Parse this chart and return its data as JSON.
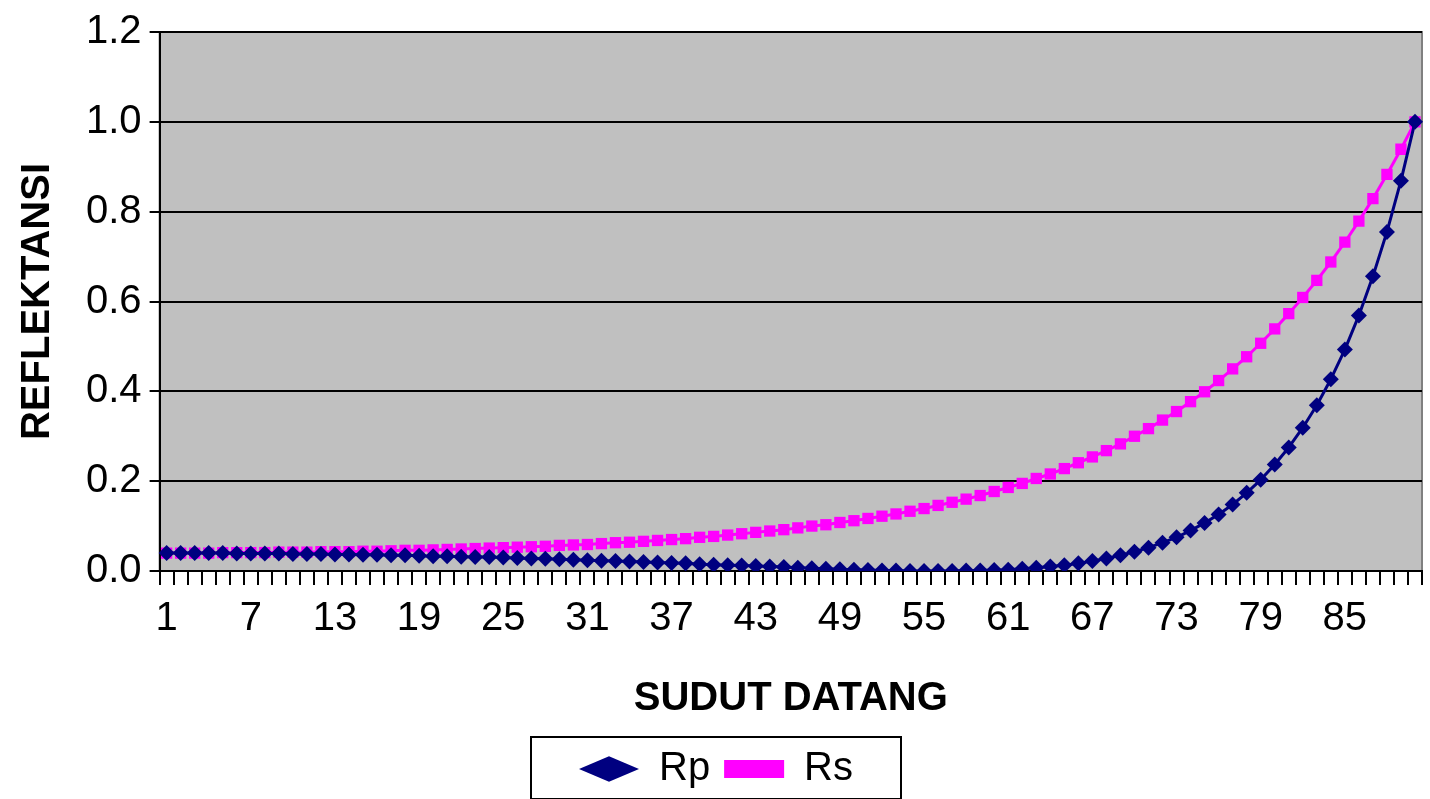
{
  "chart_data": {
    "type": "line",
    "xlabel": "SUDUT DATANG",
    "ylabel": "REFLEKTANSI",
    "categories": [
      "1",
      null,
      null,
      null,
      null,
      null,
      "7",
      null,
      null,
      null,
      null,
      null,
      "13",
      null,
      null,
      null,
      null,
      null,
      "19",
      null,
      null,
      null,
      null,
      null,
      "25",
      null,
      null,
      null,
      null,
      null,
      "31",
      null,
      null,
      null,
      null,
      null,
      "37",
      null,
      null,
      null,
      null,
      null,
      "43",
      null,
      null,
      null,
      null,
      null,
      "49",
      null,
      null,
      null,
      null,
      null,
      "55",
      null,
      null,
      null,
      null,
      null,
      "61",
      null,
      null,
      null,
      null,
      null,
      "67",
      null,
      null,
      null,
      null,
      null,
      "73",
      null,
      null,
      null,
      null,
      null,
      "79",
      null,
      null,
      null,
      null,
      null,
      "85",
      null,
      null,
      null,
      null,
      null
    ],
    "series": [
      {
        "name": "Rp",
        "color": "#000080",
        "marker": "diamond",
        "values": [
          0.04,
          0.04,
          0.04,
          0.04,
          0.04,
          0.039,
          0.039,
          0.039,
          0.039,
          0.038,
          0.038,
          0.038,
          0.037,
          0.037,
          0.036,
          0.036,
          0.035,
          0.035,
          0.034,
          0.033,
          0.033,
          0.032,
          0.031,
          0.031,
          0.03,
          0.029,
          0.028,
          0.027,
          0.026,
          0.025,
          0.024,
          0.023,
          0.022,
          0.021,
          0.02,
          0.019,
          0.018,
          0.017,
          0.015,
          0.014,
          0.013,
          0.012,
          0.011,
          0.01,
          0.009,
          0.007,
          0.006,
          0.005,
          0.004,
          0.003,
          0.002,
          0.001,
          0.001,
          0.0,
          0.0,
          0.0,
          0.0,
          0.001,
          0.001,
          0.002,
          0.003,
          0.005,
          0.007,
          0.01,
          0.013,
          0.017,
          0.022,
          0.028,
          0.035,
          0.043,
          0.052,
          0.063,
          0.075,
          0.09,
          0.107,
          0.126,
          0.148,
          0.174,
          0.203,
          0.237,
          0.275,
          0.319,
          0.369,
          0.427,
          0.493,
          0.569,
          0.656,
          0.755,
          0.869,
          1.0
        ]
      },
      {
        "name": "Rs",
        "color": "#ff00ff",
        "marker": "square",
        "values": [
          0.04,
          0.04,
          0.04,
          0.04,
          0.041,
          0.041,
          0.041,
          0.041,
          0.042,
          0.042,
          0.042,
          0.043,
          0.043,
          0.043,
          0.044,
          0.044,
          0.045,
          0.046,
          0.046,
          0.047,
          0.048,
          0.049,
          0.05,
          0.051,
          0.052,
          0.053,
          0.054,
          0.055,
          0.057,
          0.058,
          0.059,
          0.061,
          0.063,
          0.064,
          0.066,
          0.068,
          0.07,
          0.072,
          0.075,
          0.077,
          0.08,
          0.083,
          0.086,
          0.089,
          0.092,
          0.096,
          0.1,
          0.103,
          0.108,
          0.112,
          0.117,
          0.122,
          0.127,
          0.133,
          0.139,
          0.146,
          0.153,
          0.16,
          0.168,
          0.177,
          0.186,
          0.195,
          0.206,
          0.216,
          0.228,
          0.241,
          0.254,
          0.268,
          0.283,
          0.3,
          0.317,
          0.336,
          0.355,
          0.377,
          0.399,
          0.424,
          0.45,
          0.477,
          0.507,
          0.539,
          0.573,
          0.609,
          0.647,
          0.688,
          0.732,
          0.779,
          0.829,
          0.883,
          0.939,
          1.0
        ]
      }
    ],
    "ylim": [
      0,
      1.2
    ],
    "yticks": [
      {
        "value": 0,
        "label": "0.0"
      },
      {
        "value": 0.2,
        "label": "0.2"
      },
      {
        "value": 0.4,
        "label": "0.4"
      },
      {
        "value": 0.6,
        "label": "0.6"
      },
      {
        "value": 0.8,
        "label": "0.8"
      },
      {
        "value": 1.0,
        "label": "1.0"
      },
      {
        "value": 1.2,
        "label": "1.2"
      }
    ],
    "grid": "y",
    "legend": "bottom"
  }
}
